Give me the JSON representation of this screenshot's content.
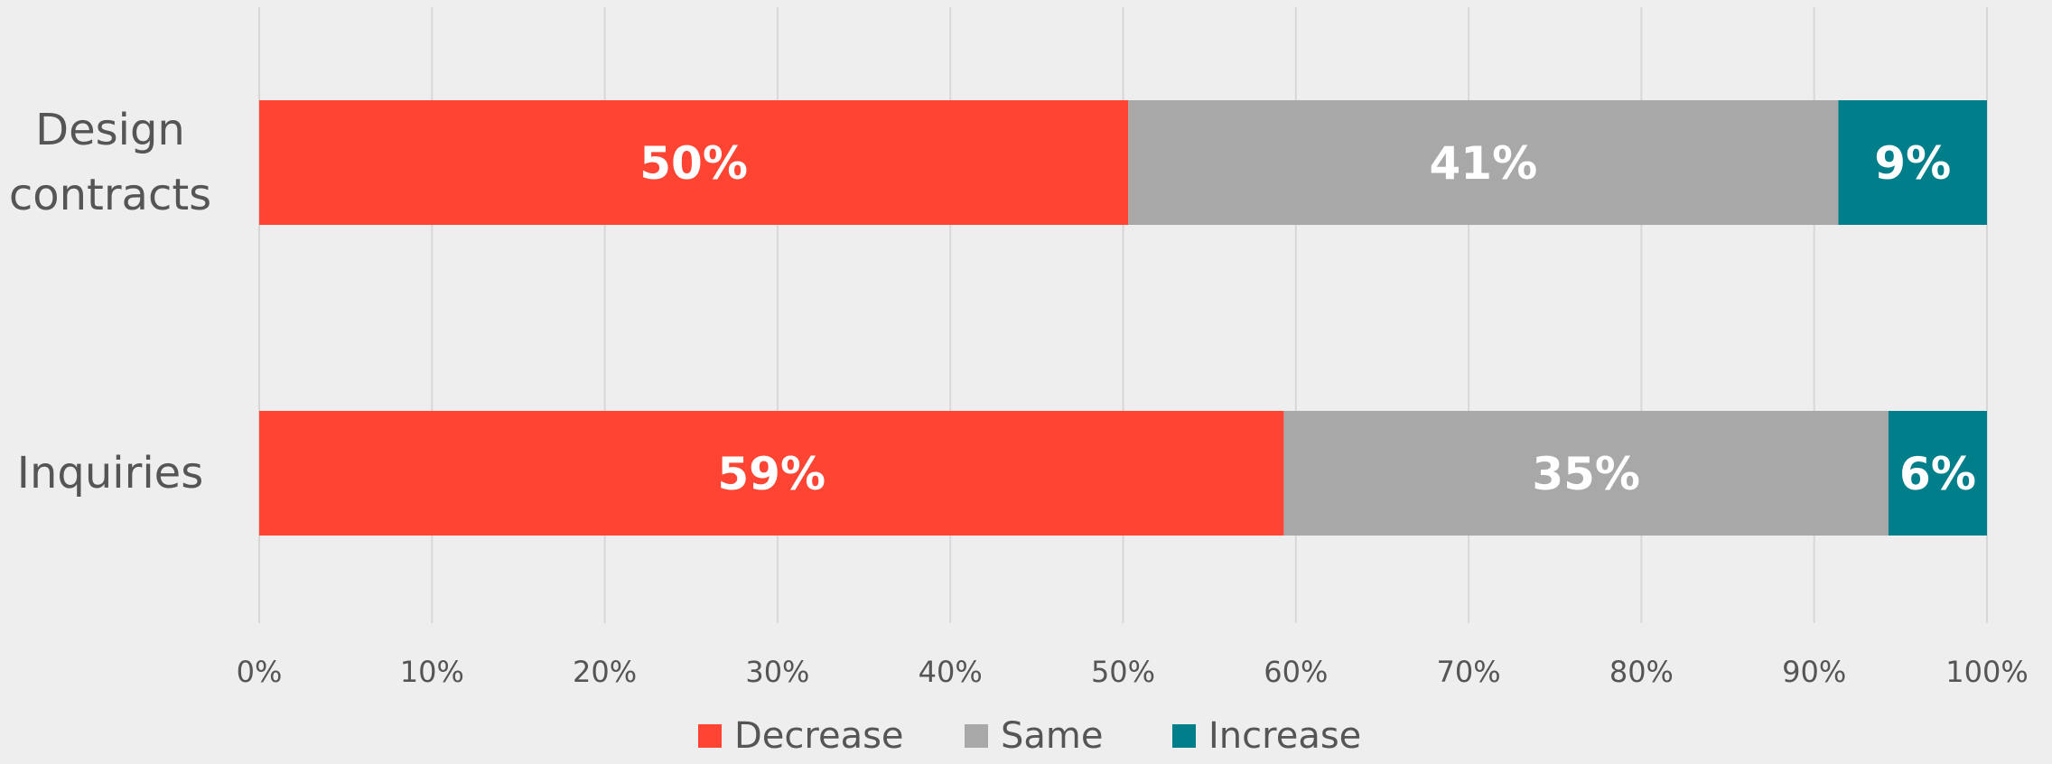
{
  "chart_data": {
    "type": "bar",
    "orientation": "horizontal",
    "stacked": true,
    "categories": [
      "Design contracts",
      "Inquiries"
    ],
    "series": [
      {
        "name": "Decrease",
        "values": [
          50.3,
          59.3
        ],
        "color": "#ff4433",
        "labels": [
          "50%",
          "59%"
        ]
      },
      {
        "name": "Same",
        "values": [
          41.1,
          35.0
        ],
        "color": "#a8a8a8",
        "labels": [
          "41%",
          "35%"
        ]
      },
      {
        "name": "Increase",
        "values": [
          8.6,
          5.7
        ],
        "color": "#007f8a",
        "labels": [
          "9%",
          "6%"
        ]
      }
    ],
    "xlim": [
      0,
      100
    ],
    "x_ticks": [
      "0%",
      "10%",
      "20%",
      "30%",
      "40%",
      "50%",
      "60%",
      "70%",
      "80%",
      "90%",
      "100%"
    ],
    "grid": true,
    "legend_position": "bottom",
    "title": "",
    "xlabel": "",
    "ylabel": ""
  }
}
